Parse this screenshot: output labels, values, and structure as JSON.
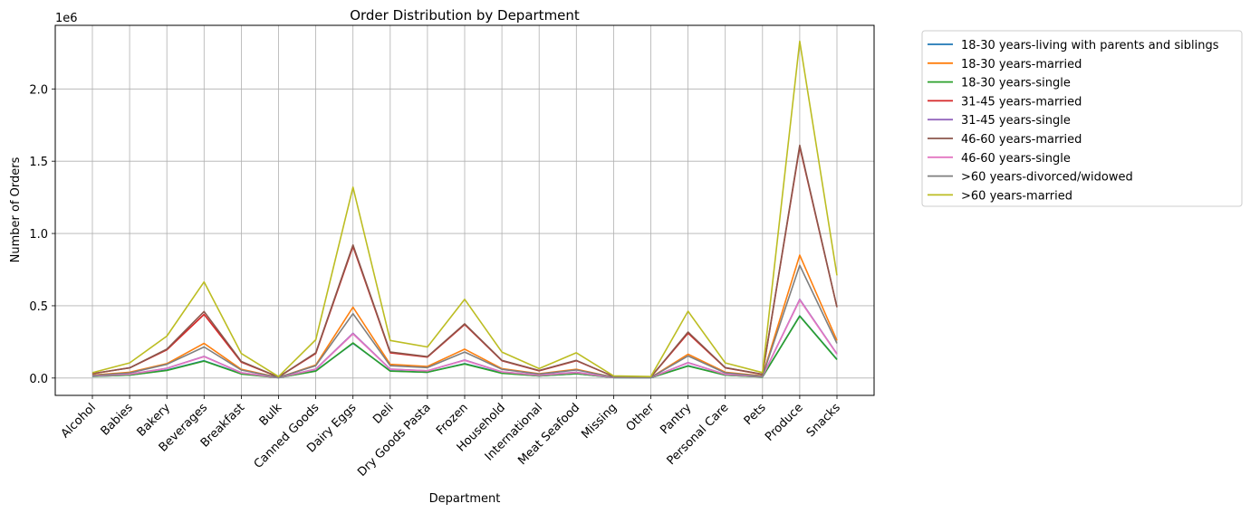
{
  "chart_data": {
    "type": "line",
    "title": "Order Distribution by Department",
    "xlabel": "Department",
    "ylabel": "Number of Orders",
    "offset_text": "1e6",
    "ylim": [
      -0.12,
      2.44
    ],
    "yticks": [
      0.0,
      0.5,
      1.0,
      1.5,
      2.0
    ],
    "ytick_labels": [
      "0.0",
      "0.5",
      "1.0",
      "1.5",
      "2.0"
    ],
    "grid": true,
    "legend_position": "outside-upper-right",
    "categories": [
      "Alcohol",
      "Babies",
      "Bakery",
      "Beverages",
      "Breakfast",
      "Bulk",
      "Canned Goods",
      "Dairy Eggs",
      "Deli",
      "Dry Goods Pasta",
      "Frozen",
      "Household",
      "International",
      "Meat Seafood",
      "Missing",
      "Other",
      "Pantry",
      "Personal Care",
      "Pets",
      "Produce",
      "Snacks"
    ],
    "series": [
      {
        "name": "18-30 years-living with parents and siblings",
        "color": "#1f77b4",
        "values": [
          0.012,
          0.02,
          0.055,
          0.12,
          0.03,
          0.002,
          0.05,
          0.24,
          0.05,
          0.04,
          0.1,
          0.035,
          0.015,
          0.03,
          0.003,
          0.002,
          0.085,
          0.02,
          0.008,
          0.43,
          0.13
        ]
      },
      {
        "name": "18-30 years-married",
        "color": "#ff7f0e",
        "values": [
          0.02,
          0.04,
          0.1,
          0.24,
          0.06,
          0.004,
          0.09,
          0.49,
          0.095,
          0.08,
          0.2,
          0.065,
          0.03,
          0.06,
          0.006,
          0.004,
          0.165,
          0.04,
          0.015,
          0.85,
          0.26
        ]
      },
      {
        "name": "18-30 years-single",
        "color": "#2ca02c",
        "values": [
          0.012,
          0.02,
          0.052,
          0.117,
          0.028,
          0.002,
          0.048,
          0.243,
          0.048,
          0.04,
          0.097,
          0.033,
          0.015,
          0.03,
          0.003,
          0.002,
          0.083,
          0.02,
          0.007,
          0.428,
          0.127
        ]
      },
      {
        "name": "31-45 years-married",
        "color": "#d62728",
        "values": [
          0.03,
          0.07,
          0.195,
          0.44,
          0.11,
          0.007,
          0.17,
          0.91,
          0.175,
          0.145,
          0.37,
          0.12,
          0.05,
          0.12,
          0.01,
          0.007,
          0.31,
          0.07,
          0.025,
          1.6,
          0.49
        ]
      },
      {
        "name": "31-45 years-single",
        "color": "#9467bd",
        "values": [
          0.015,
          0.027,
          0.068,
          0.15,
          0.037,
          0.003,
          0.062,
          0.31,
          0.062,
          0.05,
          0.125,
          0.043,
          0.02,
          0.04,
          0.004,
          0.003,
          0.107,
          0.025,
          0.01,
          0.545,
          0.167
        ]
      },
      {
        "name": "46-60 years-married",
        "color": "#8c564b",
        "values": [
          0.03,
          0.07,
          0.2,
          0.46,
          0.115,
          0.007,
          0.175,
          0.92,
          0.18,
          0.148,
          0.375,
          0.122,
          0.052,
          0.122,
          0.01,
          0.007,
          0.318,
          0.072,
          0.026,
          1.61,
          0.49
        ]
      },
      {
        "name": "46-60 years-single",
        "color": "#e377c2",
        "values": [
          0.015,
          0.026,
          0.066,
          0.148,
          0.036,
          0.003,
          0.06,
          0.305,
          0.06,
          0.05,
          0.122,
          0.042,
          0.019,
          0.038,
          0.004,
          0.003,
          0.105,
          0.025,
          0.01,
          0.54,
          0.165
        ]
      },
      {
        "name": ">60 years-divorced/widowed",
        "color": "#7f7f7f",
        "values": [
          0.018,
          0.035,
          0.095,
          0.215,
          0.055,
          0.004,
          0.085,
          0.445,
          0.085,
          0.072,
          0.18,
          0.06,
          0.028,
          0.056,
          0.006,
          0.004,
          0.153,
          0.036,
          0.013,
          0.78,
          0.24
        ]
      },
      {
        "name": ">60 years-married",
        "color": "#bcbd22",
        "values": [
          0.037,
          0.105,
          0.29,
          0.665,
          0.17,
          0.01,
          0.265,
          1.32,
          0.26,
          0.215,
          0.545,
          0.18,
          0.065,
          0.175,
          0.015,
          0.01,
          0.462,
          0.105,
          0.038,
          2.33,
          0.71
        ]
      }
    ]
  }
}
